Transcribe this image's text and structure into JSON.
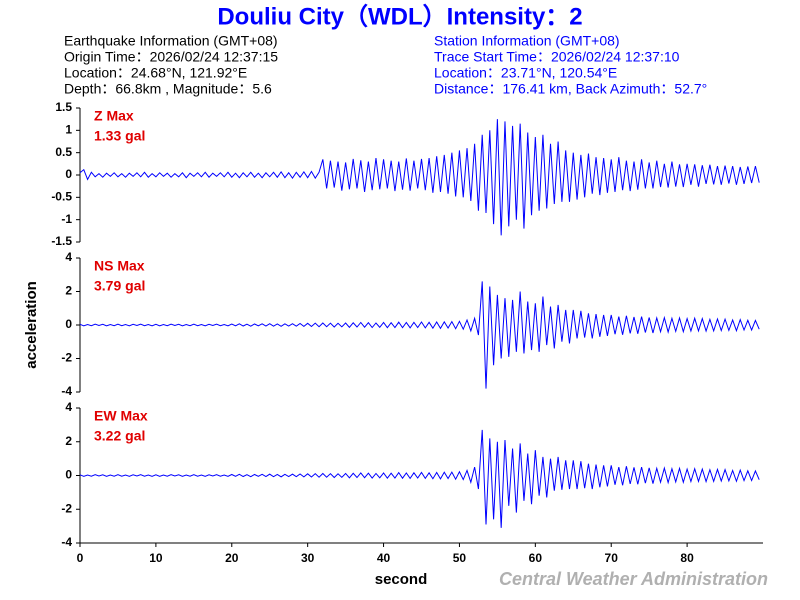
{
  "header": {
    "title": "Douliu City（WDL）Intensity：2",
    "event": [
      "Earthquake Information  (GMT+08)",
      "Origin Time：2026/02/24 12:37:15",
      "Location：24.68°N, 121.92°E",
      "Depth：66.8km , Magnitude：5.6"
    ],
    "station": [
      "Station Information  (GMT+08)",
      "Trace Start Time：2026/02/24 12:37:10",
      "Location：23.71°N, 120.54°E",
      "Distance：176.41 km, Back Azimuth：52.7°"
    ],
    "footer": "Central Weather Administration"
  },
  "chart_data": [
    {
      "type": "line",
      "annotation": [
        "Z Max",
        "1.33 gal"
      ],
      "xlim": [
        0,
        90
      ],
      "ylim": [
        -1.5,
        1.5
      ],
      "yticks": [
        1.5,
        1,
        0.5,
        0,
        -0.5,
        -1,
        -1.5
      ],
      "x": [
        0,
        0.5,
        1,
        1.5,
        2,
        2.5,
        3,
        3.5,
        4,
        4.5,
        5,
        5.5,
        6,
        6.5,
        7,
        7.5,
        8,
        8.5,
        9,
        9.5,
        10,
        10.5,
        11,
        11.5,
        12,
        12.5,
        13,
        13.5,
        14,
        14.5,
        15,
        15.5,
        16,
        16.5,
        17,
        17.5,
        18,
        18.5,
        19,
        19.5,
        20,
        20.5,
        21,
        21.5,
        22,
        22.5,
        23,
        23.5,
        24,
        24.5,
        25,
        25.5,
        26,
        26.5,
        27,
        27.5,
        28,
        28.5,
        29,
        29.5,
        30,
        30.5,
        31,
        31.5,
        32,
        32.5,
        33,
        33.5,
        34,
        34.5,
        35,
        35.5,
        36,
        36.5,
        37,
        37.5,
        38,
        38.5,
        39,
        39.5,
        40,
        40.5,
        41,
        41.5,
        42,
        42.5,
        43,
        43.5,
        44,
        44.5,
        45,
        45.5,
        46,
        46.5,
        47,
        47.5,
        48,
        48.5,
        49,
        49.5,
        50,
        50.5,
        51,
        51.5,
        52,
        52.5,
        53,
        53.5,
        54,
        54.5,
        55,
        55.5,
        56,
        56.5,
        57,
        57.5,
        58,
        58.5,
        59,
        59.5,
        60,
        60.5,
        61,
        61.5,
        62,
        62.5,
        63,
        63.5,
        64,
        64.5,
        65,
        65.5,
        66,
        66.5,
        67,
        67.5,
        68,
        68.5,
        69,
        69.5,
        70,
        70.5,
        71,
        71.5,
        72,
        72.5,
        73,
        73.5,
        74,
        74.5,
        75,
        75.5,
        76,
        76.5,
        77,
        77.5,
        78,
        78.5,
        79,
        79.5,
        80,
        80.5,
        81,
        81.5,
        82,
        82.5,
        83,
        83.5,
        84,
        84.5,
        85,
        85.5,
        86,
        86.5,
        87,
        87.5,
        88,
        88.5,
        89,
        89.5
      ],
      "series": [
        {
          "color": "#0000ff",
          "values": [
            0.05,
            0.12,
            -0.1,
            0.06,
            -0.04,
            0.03,
            -0.05,
            0.04,
            -0.03,
            0.05,
            -0.04,
            0.03,
            -0.05,
            0.04,
            -0.03,
            0.05,
            -0.04,
            0.06,
            -0.05,
            0.03,
            -0.04,
            0.05,
            -0.03,
            0.04,
            -0.05,
            0.03,
            -0.04,
            0.05,
            -0.06,
            0.04,
            -0.03,
            0.05,
            -0.04,
            0.06,
            -0.05,
            0.04,
            -0.03,
            0.05,
            -0.04,
            0.06,
            -0.05,
            0.04,
            -0.06,
            0.05,
            -0.04,
            0.06,
            -0.05,
            0.04,
            -0.06,
            0.05,
            -0.04,
            0.06,
            -0.05,
            0.07,
            -0.06,
            0.05,
            -0.07,
            0.06,
            -0.05,
            0.07,
            -0.06,
            0.08,
            -0.07,
            0.06,
            0.35,
            -0.3,
            0.32,
            -0.28,
            0.3,
            -0.35,
            0.28,
            -0.32,
            0.36,
            -0.3,
            0.33,
            -0.38,
            0.3,
            -0.34,
            0.38,
            -0.32,
            0.35,
            -0.3,
            0.32,
            -0.36,
            0.3,
            -0.33,
            0.37,
            -0.35,
            0.32,
            -0.3,
            0.36,
            -0.34,
            0.38,
            -0.4,
            0.42,
            -0.38,
            0.45,
            -0.42,
            0.5,
            -0.48,
            0.55,
            -0.5,
            0.6,
            -0.58,
            0.7,
            -0.8,
            0.9,
            -0.85,
            1.0,
            -1.1,
            1.25,
            -1.35,
            1.2,
            -1.15,
            1.1,
            -1.0,
            1.15,
            -1.2,
            0.95,
            -0.9,
            0.85,
            -0.8,
            0.9,
            -0.75,
            0.7,
            -0.65,
            0.75,
            -0.6,
            0.55,
            -0.6,
            0.5,
            -0.55,
            0.45,
            -0.5,
            0.48,
            -0.42,
            0.4,
            -0.45,
            0.38,
            -0.4,
            0.35,
            -0.38,
            0.4,
            -0.34,
            0.32,
            -0.36,
            0.3,
            -0.33,
            0.35,
            -0.3,
            0.28,
            -0.3,
            0.32,
            -0.27,
            0.25,
            -0.28,
            0.3,
            -0.26,
            0.24,
            -0.27,
            0.25,
            -0.22,
            0.24,
            -0.26,
            0.22,
            -0.2,
            0.23,
            -0.21,
            0.2,
            -0.22,
            0.21,
            -0.19,
            0.2,
            -0.22,
            0.18,
            -0.2,
            0.19,
            -0.18,
            0.2,
            -0.17
          ]
        }
      ]
    },
    {
      "type": "line",
      "annotation": [
        "NS Max",
        "3.79 gal"
      ],
      "y_label": "acceleration",
      "xlim": [
        0,
        90
      ],
      "ylim": [
        -4,
        4
      ],
      "yticks": [
        4,
        2,
        0,
        -2,
        -4
      ],
      "x": [
        0,
        0.5,
        1,
        1.5,
        2,
        2.5,
        3,
        3.5,
        4,
        4.5,
        5,
        5.5,
        6,
        6.5,
        7,
        7.5,
        8,
        8.5,
        9,
        9.5,
        10,
        10.5,
        11,
        11.5,
        12,
        12.5,
        13,
        13.5,
        14,
        14.5,
        15,
        15.5,
        16,
        16.5,
        17,
        17.5,
        18,
        18.5,
        19,
        19.5,
        20,
        20.5,
        21,
        21.5,
        22,
        22.5,
        23,
        23.5,
        24,
        24.5,
        25,
        25.5,
        26,
        26.5,
        27,
        27.5,
        28,
        28.5,
        29,
        29.5,
        30,
        30.5,
        31,
        31.5,
        32,
        32.5,
        33,
        33.5,
        34,
        34.5,
        35,
        35.5,
        36,
        36.5,
        37,
        37.5,
        38,
        38.5,
        39,
        39.5,
        40,
        40.5,
        41,
        41.5,
        42,
        42.5,
        43,
        43.5,
        44,
        44.5,
        45,
        45.5,
        46,
        46.5,
        47,
        47.5,
        48,
        48.5,
        49,
        49.5,
        50,
        50.5,
        51,
        51.5,
        52,
        52.5,
        53,
        53.5,
        54,
        54.5,
        55,
        55.5,
        56,
        56.5,
        57,
        57.5,
        58,
        58.5,
        59,
        59.5,
        60,
        60.5,
        61,
        61.5,
        62,
        62.5,
        63,
        63.5,
        64,
        64.5,
        65,
        65.5,
        66,
        66.5,
        67,
        67.5,
        68,
        68.5,
        69,
        69.5,
        70,
        70.5,
        71,
        71.5,
        72,
        72.5,
        73,
        73.5,
        74,
        74.5,
        75,
        75.5,
        76,
        76.5,
        77,
        77.5,
        78,
        78.5,
        79,
        79.5,
        80,
        80.5,
        81,
        81.5,
        82,
        82.5,
        83,
        83.5,
        84,
        84.5,
        85,
        85.5,
        86,
        86.5,
        87,
        87.5,
        88,
        88.5,
        89,
        89.5
      ],
      "series": [
        {
          "color": "#0000ff",
          "values": [
            0.04,
            -0.05,
            0.03,
            -0.04,
            0.05,
            -0.03,
            0.04,
            -0.05,
            0.03,
            -0.04,
            0.05,
            -0.04,
            0.03,
            -0.05,
            0.04,
            -0.03,
            0.05,
            -0.04,
            0.03,
            -0.05,
            0.04,
            -0.05,
            0.03,
            -0.04,
            0.05,
            -0.03,
            0.04,
            -0.05,
            0.03,
            -0.04,
            0.05,
            -0.04,
            0.03,
            -0.05,
            0.04,
            -0.03,
            0.05,
            -0.04,
            0.03,
            -0.05,
            0.06,
            -0.05,
            0.07,
            -0.06,
            0.05,
            -0.07,
            0.06,
            -0.05,
            0.07,
            -0.06,
            0.08,
            -0.07,
            0.06,
            -0.08,
            0.07,
            -0.06,
            0.08,
            -0.07,
            0.09,
            -0.08,
            0.1,
            -0.09,
            0.11,
            -0.1,
            0.12,
            -0.1,
            0.11,
            -0.12,
            0.1,
            -0.11,
            0.12,
            -0.14,
            0.13,
            -0.12,
            0.15,
            -0.13,
            0.14,
            -0.15,
            0.12,
            -0.14,
            0.15,
            -0.16,
            0.14,
            -0.15,
            0.17,
            -0.16,
            0.15,
            -0.17,
            0.16,
            -0.15,
            0.18,
            -0.17,
            0.16,
            -0.19,
            0.18,
            -0.2,
            0.19,
            -0.18,
            0.2,
            -0.22,
            0.22,
            -0.25,
            0.3,
            -0.35,
            0.4,
            -0.6,
            2.6,
            -3.8,
            2.3,
            -2.4,
            1.8,
            -2.0,
            1.6,
            -1.9,
            1.5,
            -1.6,
            2.0,
            -1.7,
            1.4,
            -1.5,
            1.3,
            -1.6,
            1.7,
            -1.2,
            1.1,
            -1.4,
            1.2,
            -1.0,
            0.9,
            -1.1,
            0.9,
            -0.8,
            0.85,
            -0.75,
            0.7,
            -0.8,
            0.65,
            -0.7,
            0.6,
            -0.65,
            0.6,
            -0.55,
            0.5,
            -0.58,
            0.55,
            -0.5,
            0.48,
            -0.52,
            0.5,
            -0.45,
            0.45,
            -0.48,
            0.42,
            -0.4,
            0.44,
            -0.42,
            0.4,
            -0.38,
            0.42,
            -0.4,
            0.38,
            -0.36,
            0.4,
            -0.35,
            0.38,
            -0.36,
            0.34,
            -0.35,
            0.36,
            -0.33,
            0.35,
            -0.32,
            0.3,
            -0.34,
            0.32,
            -0.3,
            0.28,
            -0.3,
            0.27,
            -0.25
          ]
        }
      ]
    },
    {
      "type": "line",
      "annotation": [
        "EW Max",
        "3.22 gal"
      ],
      "x_label": "second",
      "xlim": [
        0,
        90
      ],
      "ylim": [
        -4,
        4
      ],
      "yticks": [
        4,
        2,
        0,
        -2,
        -4
      ],
      "xticks": [
        0,
        10,
        20,
        30,
        40,
        50,
        60,
        70,
        80
      ],
      "x": [
        0,
        0.5,
        1,
        1.5,
        2,
        2.5,
        3,
        3.5,
        4,
        4.5,
        5,
        5.5,
        6,
        6.5,
        7,
        7.5,
        8,
        8.5,
        9,
        9.5,
        10,
        10.5,
        11,
        11.5,
        12,
        12.5,
        13,
        13.5,
        14,
        14.5,
        15,
        15.5,
        16,
        16.5,
        17,
        17.5,
        18,
        18.5,
        19,
        19.5,
        20,
        20.5,
        21,
        21.5,
        22,
        22.5,
        23,
        23.5,
        24,
        24.5,
        25,
        25.5,
        26,
        26.5,
        27,
        27.5,
        28,
        28.5,
        29,
        29.5,
        30,
        30.5,
        31,
        31.5,
        32,
        32.5,
        33,
        33.5,
        34,
        34.5,
        35,
        35.5,
        36,
        36.5,
        37,
        37.5,
        38,
        38.5,
        39,
        39.5,
        40,
        40.5,
        41,
        41.5,
        42,
        42.5,
        43,
        43.5,
        44,
        44.5,
        45,
        45.5,
        46,
        46.5,
        47,
        47.5,
        48,
        48.5,
        49,
        49.5,
        50,
        50.5,
        51,
        51.5,
        52,
        52.5,
        53,
        53.5,
        54,
        54.5,
        55,
        55.5,
        56,
        56.5,
        57,
        57.5,
        58,
        58.5,
        59,
        59.5,
        60,
        60.5,
        61,
        61.5,
        62,
        62.5,
        63,
        63.5,
        64,
        64.5,
        65,
        65.5,
        66,
        66.5,
        67,
        67.5,
        68,
        68.5,
        69,
        69.5,
        70,
        70.5,
        71,
        71.5,
        72,
        72.5,
        73,
        73.5,
        74,
        74.5,
        75,
        75.5,
        76,
        76.5,
        77,
        77.5,
        78,
        78.5,
        79,
        79.5,
        80,
        80.5,
        81,
        81.5,
        82,
        82.5,
        83,
        83.5,
        84,
        84.5,
        85,
        85.5,
        86,
        86.5,
        87,
        87.5,
        88,
        88.5,
        89,
        89.5
      ],
      "series": [
        {
          "color": "#0000ff",
          "values": [
            0.04,
            -0.05,
            0.03,
            -0.04,
            0.05,
            -0.03,
            0.04,
            -0.05,
            0.03,
            -0.04,
            0.05,
            -0.04,
            0.03,
            -0.05,
            0.04,
            -0.03,
            0.05,
            -0.04,
            0.03,
            -0.05,
            0.04,
            -0.05,
            0.03,
            -0.04,
            0.05,
            -0.03,
            0.04,
            -0.05,
            0.03,
            -0.04,
            0.05,
            -0.04,
            0.03,
            -0.05,
            0.04,
            -0.03,
            0.05,
            -0.04,
            0.03,
            -0.05,
            0.06,
            -0.05,
            0.07,
            -0.06,
            0.05,
            -0.07,
            0.06,
            -0.05,
            0.07,
            -0.06,
            0.08,
            -0.07,
            0.06,
            -0.08,
            0.07,
            -0.06,
            0.08,
            -0.07,
            0.09,
            -0.08,
            0.1,
            -0.09,
            0.11,
            -0.1,
            0.12,
            -0.1,
            0.11,
            -0.12,
            0.1,
            -0.11,
            0.12,
            -0.14,
            0.13,
            -0.12,
            0.15,
            -0.13,
            0.14,
            -0.15,
            0.12,
            -0.14,
            0.15,
            -0.16,
            0.14,
            -0.15,
            0.17,
            -0.16,
            0.15,
            -0.17,
            0.16,
            -0.15,
            0.18,
            -0.17,
            0.16,
            -0.19,
            0.18,
            -0.2,
            0.19,
            -0.18,
            0.2,
            -0.22,
            0.22,
            -0.24,
            0.3,
            -0.4,
            0.5,
            -0.8,
            2.7,
            -2.9,
            2.2,
            -2.6,
            2.0,
            -3.1,
            2.1,
            -1.8,
            1.6,
            -2.2,
            1.9,
            -1.5,
            1.3,
            -1.7,
            1.5,
            -1.2,
            1.1,
            -1.3,
            1.0,
            -0.9,
            1.1,
            -0.85,
            0.9,
            -0.8,
            0.9,
            -0.8,
            0.85,
            -0.75,
            0.7,
            -0.8,
            0.65,
            -0.7,
            0.6,
            -0.65,
            0.6,
            -0.55,
            0.5,
            -0.58,
            0.55,
            -0.5,
            0.48,
            -0.52,
            0.5,
            -0.45,
            0.45,
            -0.48,
            0.42,
            -0.4,
            0.44,
            -0.42,
            0.4,
            -0.38,
            0.42,
            -0.4,
            0.38,
            -0.36,
            0.4,
            -0.35,
            0.38,
            -0.36,
            0.34,
            -0.35,
            0.36,
            -0.33,
            0.35,
            -0.32,
            0.3,
            -0.34,
            0.32,
            -0.3,
            0.28,
            -0.3,
            0.27,
            -0.25
          ]
        }
      ]
    }
  ]
}
